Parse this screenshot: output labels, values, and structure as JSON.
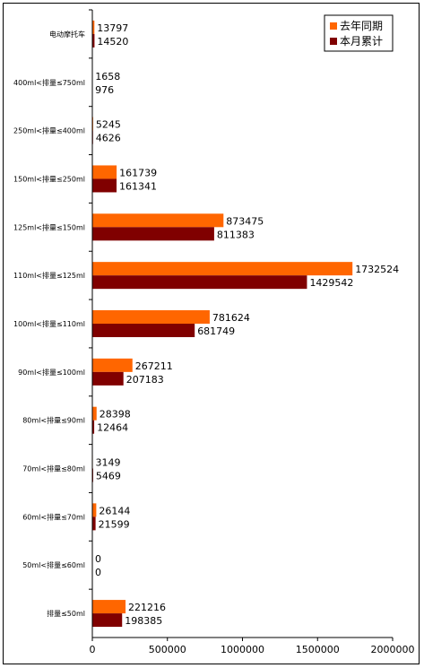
{
  "chart_data": {
    "type": "bar",
    "orientation": "horizontal",
    "categories": [
      "电动摩托车",
      "400ml<排量≤750ml",
      "250ml<排量≤400ml",
      "150ml<排量≤250ml",
      "125ml<排量≤150ml",
      "110ml<排量≤125ml",
      "100ml<排量≤110ml",
      "90ml<排量≤100ml",
      "80ml<排量≤90ml",
      "70ml<排量≤80ml",
      "60ml<排量≤70ml",
      "50ml<排量≤60ml",
      "排量≤50ml"
    ],
    "series": [
      {
        "name": "去年同期",
        "color": "#ff6600",
        "values": [
          13797,
          1658,
          5245,
          161739,
          873475,
          1732524,
          781624,
          267211,
          28398,
          3149,
          26144,
          0,
          221216
        ]
      },
      {
        "name": "本月累计",
        "color": "#800000",
        "values": [
          14520,
          976,
          4626,
          161341,
          811383,
          1429542,
          681749,
          207183,
          12464,
          5469,
          21599,
          0,
          198385
        ]
      }
    ],
    "xlim": [
      0,
      2000000
    ],
    "xticks": [
      "0",
      "500000",
      "1000000",
      "1500000",
      "2000000"
    ],
    "legend": "top-right",
    "grid": false
  }
}
